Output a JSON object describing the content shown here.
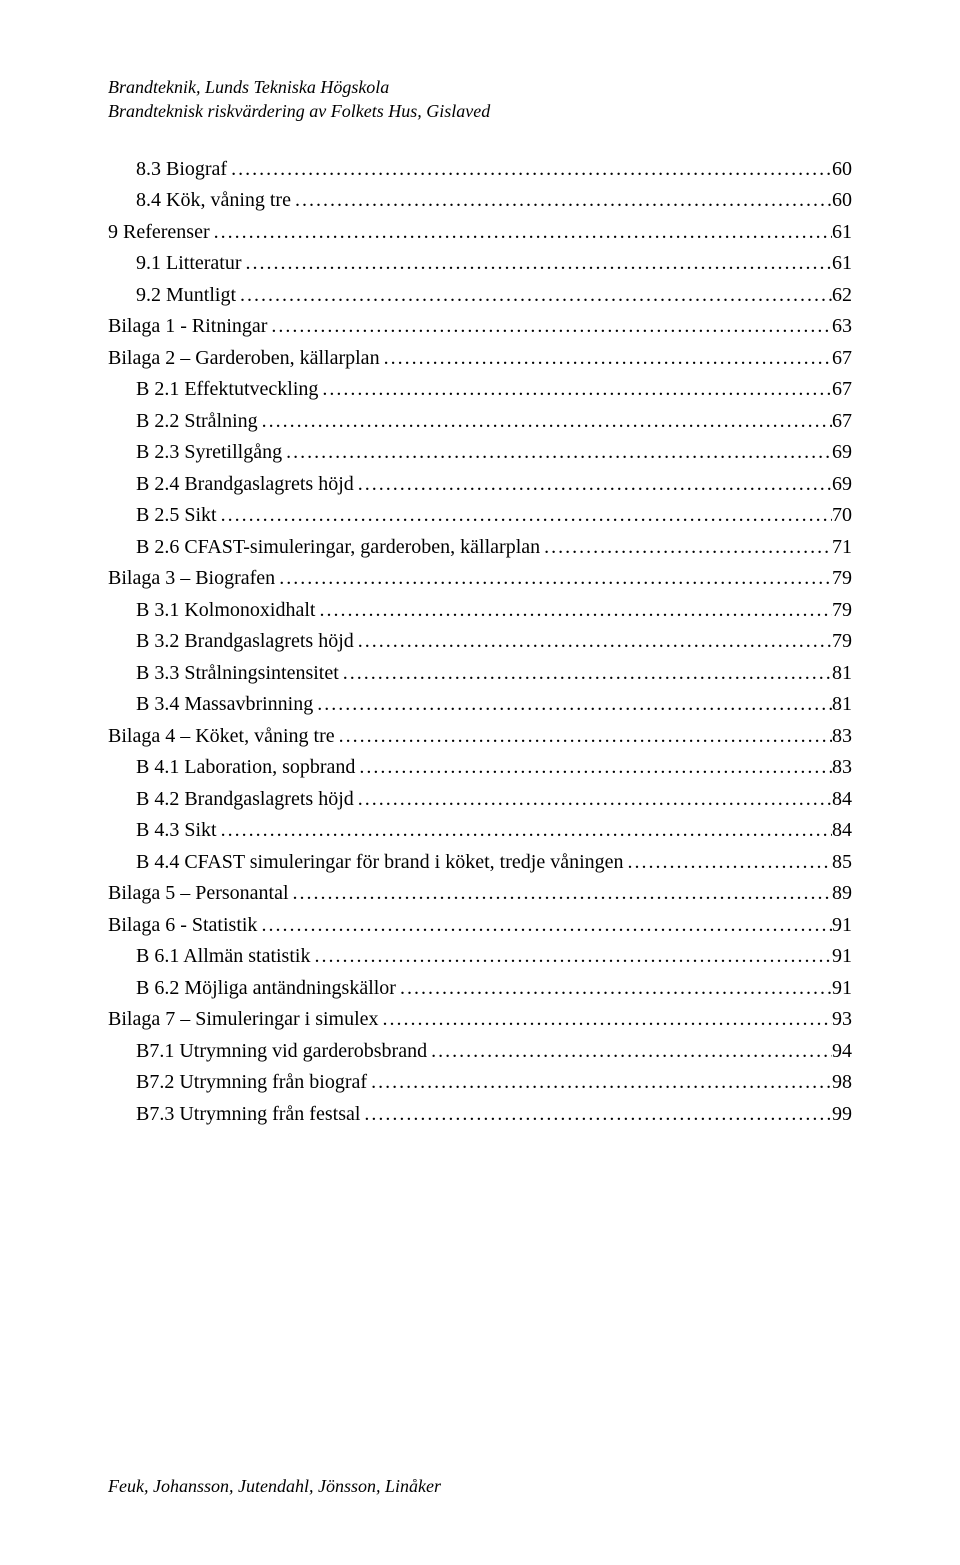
{
  "header": {
    "line1": "Brandteknik, Lunds Tekniska Högskola",
    "line2": "Brandteknisk riskvärdering av Folkets Hus, Gislaved"
  },
  "toc": [
    {
      "label": "8.3 Biograf",
      "page": "60",
      "level": 1
    },
    {
      "label": "8.4 Kök, våning tre",
      "page": "60",
      "level": 1
    },
    {
      "label": "9 Referenser",
      "page": "61",
      "level": 0
    },
    {
      "label": "9.1 Litteratur",
      "page": "61",
      "level": 1
    },
    {
      "label": "9.2 Muntligt",
      "page": "62",
      "level": 1
    },
    {
      "label": "Bilaga 1 - Ritningar",
      "page": "63",
      "level": 0
    },
    {
      "label": "Bilaga 2 – Garderoben, källarplan",
      "page": "67",
      "level": 0
    },
    {
      "label": "B 2.1 Effektutveckling",
      "page": "67",
      "level": 1
    },
    {
      "label": "B 2.2 Strålning",
      "page": "67",
      "level": 1
    },
    {
      "label": "B 2.3 Syretillgång",
      "page": "69",
      "level": 1
    },
    {
      "label": "B 2.4 Brandgaslagrets höjd",
      "page": "69",
      "level": 1
    },
    {
      "label": "B 2.5 Sikt",
      "page": "70",
      "level": 1
    },
    {
      "label": "B 2.6 CFAST-simuleringar, garderoben, källarplan",
      "page": "71",
      "level": 1
    },
    {
      "label": "Bilaga 3 – Biografen",
      "page": "79",
      "level": 0
    },
    {
      "label": "B 3.1 Kolmonoxidhalt",
      "page": "79",
      "level": 1
    },
    {
      "label": "B 3.2 Brandgaslagrets höjd",
      "page": "79",
      "level": 1
    },
    {
      "label": "B 3.3 Strålningsintensitet",
      "page": "81",
      "level": 1
    },
    {
      "label": "B 3.4 Massavbrinning",
      "page": "81",
      "level": 1
    },
    {
      "label": "Bilaga 4 – Köket, våning tre",
      "page": "83",
      "level": 0
    },
    {
      "label": "B 4.1 Laboration, sopbrand",
      "page": "83",
      "level": 1
    },
    {
      "label": "B 4.2 Brandgaslagrets höjd",
      "page": "84",
      "level": 1
    },
    {
      "label": "B 4.3 Sikt",
      "page": "84",
      "level": 1
    },
    {
      "label": "B 4.4 CFAST simuleringar för brand i köket, tredje våningen",
      "page": "85",
      "level": 1
    },
    {
      "label": "Bilaga 5 – Personantal",
      "page": "89",
      "level": 0
    },
    {
      "label": "Bilaga 6 - Statistik",
      "page": "91",
      "level": 0
    },
    {
      "label": "B 6.1 Allmän statistik",
      "page": "91",
      "level": 1
    },
    {
      "label": "B 6.2 Möjliga antändningskällor",
      "page": "91",
      "level": 1
    },
    {
      "label": "Bilaga 7 – Simuleringar i simulex",
      "page": "93",
      "level": 0
    },
    {
      "label": "B7.1 Utrymning vid garderobsbrand",
      "page": "94",
      "level": 1
    },
    {
      "label": "B7.2 Utrymning från biograf",
      "page": "98",
      "level": 1
    },
    {
      "label": "B7.3 Utrymning från festsal",
      "page": "99",
      "level": 1
    }
  ],
  "footer": "Feuk, Johansson, Jutendahl, Jönsson, Linåker"
}
